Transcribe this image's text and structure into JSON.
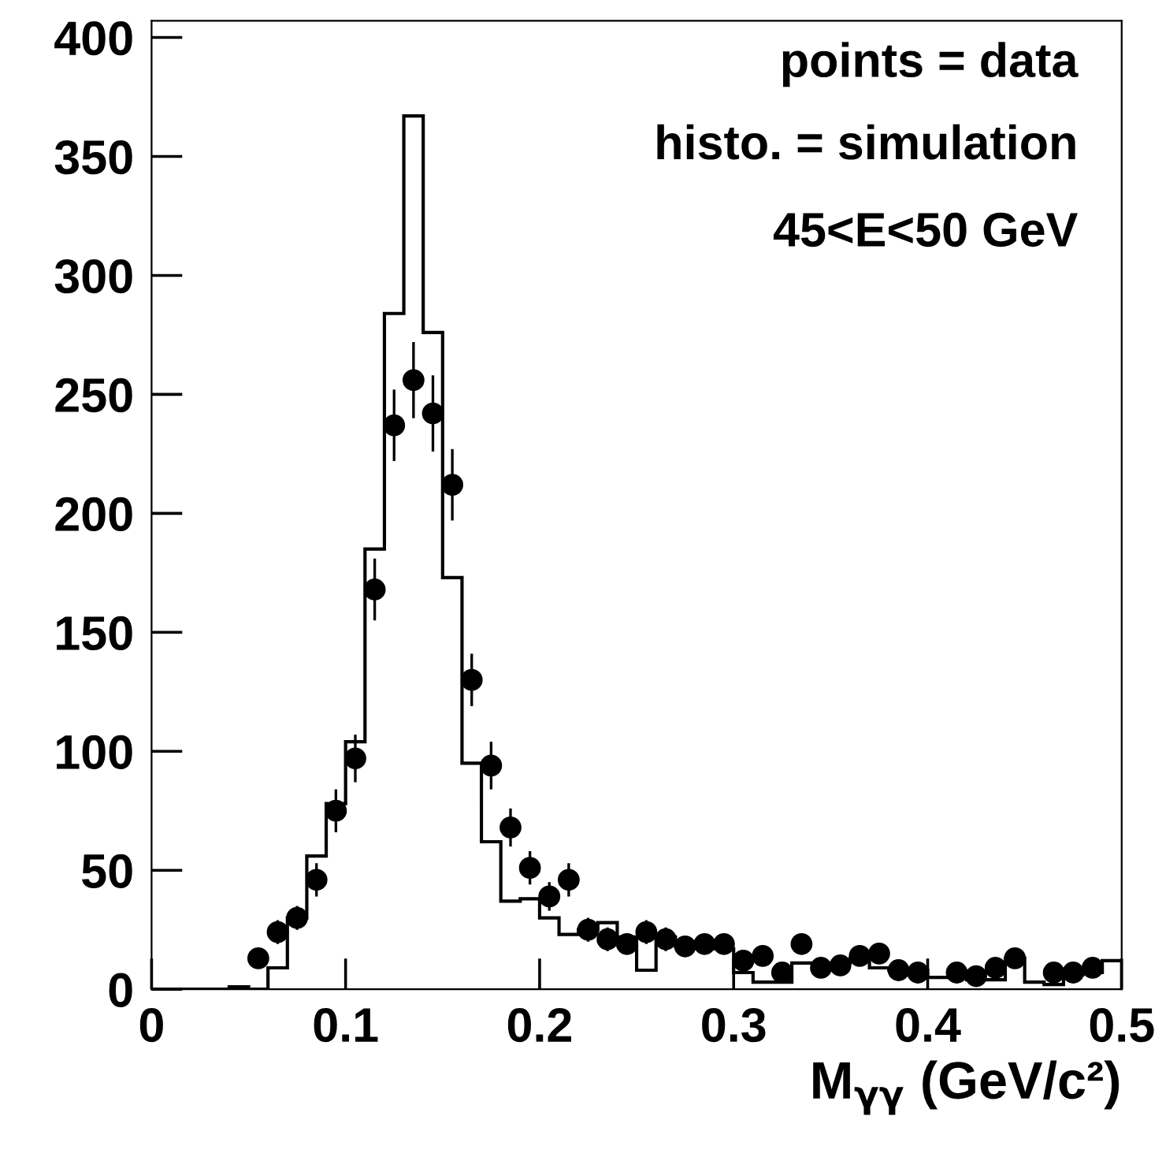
{
  "chart_data": {
    "type": "histogram",
    "xlabel": "M$_{γγ}$ (GeV/c²)",
    "annotations": [
      "points = data",
      "histo. = simulation",
      "45<E<50 GeV"
    ],
    "xlim": [
      0,
      0.5
    ],
    "ylim": [
      0,
      407
    ],
    "xticks": [
      0,
      0.1,
      0.2,
      0.3,
      0.4,
      0.5
    ],
    "yticks": [
      0,
      50,
      100,
      150,
      200,
      250,
      300,
      350,
      400
    ],
    "color": "#000000",
    "bins": [
      0,
      0.01,
      0.02,
      0.03,
      0.04,
      0.05,
      0.06,
      0.07,
      0.08,
      0.09,
      0.1,
      0.11,
      0.12,
      0.13,
      0.14,
      0.15,
      0.16,
      0.17,
      0.18,
      0.19,
      0.2,
      0.21,
      0.22,
      0.23,
      0.24,
      0.25,
      0.26,
      0.27,
      0.28,
      0.29,
      0.3,
      0.31,
      0.32,
      0.33,
      0.34,
      0.35,
      0.36,
      0.37,
      0.38,
      0.39,
      0.4,
      0.41,
      0.42,
      0.43,
      0.44,
      0.45,
      0.46,
      0.47,
      0.48,
      0.49,
      0.5
    ],
    "values": [
      0,
      0,
      0,
      0,
      1,
      0,
      9,
      30,
      56,
      78,
      104,
      185,
      284,
      367,
      276,
      173,
      95,
      62,
      37,
      38,
      30,
      23,
      25,
      28,
      22,
      8,
      22,
      18,
      20,
      17,
      7,
      3,
      3,
      11,
      11,
      11,
      13,
      9,
      8,
      8,
      5,
      5,
      4,
      4,
      13,
      3,
      2,
      6,
      7,
      12
    ],
    "series": [
      {
        "type": "scatter",
        "color": "#000000",
        "marker": "circle",
        "x": [
          0.055,
          0.065,
          0.075,
          0.085,
          0.095,
          0.105,
          0.115,
          0.125,
          0.135,
          0.145,
          0.155,
          0.165,
          0.175,
          0.185,
          0.195,
          0.205,
          0.215,
          0.225,
          0.235,
          0.245,
          0.255,
          0.265,
          0.275,
          0.285,
          0.295,
          0.305,
          0.315,
          0.325,
          0.335,
          0.345,
          0.355,
          0.365,
          0.375,
          0.385,
          0.395,
          0.405,
          0.415,
          0.425,
          0.435,
          0.445,
          0.455,
          0.465,
          0.475,
          0.485
        ],
        "values": [
          13,
          24,
          30,
          46,
          75,
          97,
          168,
          237,
          256,
          242,
          212,
          130,
          94,
          68,
          51,
          39,
          46,
          25,
          21,
          19,
          24,
          21,
          18,
          19,
          19,
          12,
          14,
          7,
          19,
          9,
          10,
          14,
          15,
          8,
          7,
          null,
          7,
          5.5,
          9,
          13,
          null,
          7,
          7,
          9
        ],
        "errors": [
          4,
          5,
          5,
          7,
          9,
          10,
          13,
          15,
          16,
          16,
          15,
          11,
          10,
          8,
          7,
          6,
          7,
          5,
          5,
          4,
          5,
          5,
          4,
          4,
          4,
          3,
          4,
          3,
          4,
          3,
          3,
          4,
          4,
          3,
          3,
          null,
          3,
          2,
          3,
          4,
          null,
          3,
          3,
          3
        ]
      }
    ]
  }
}
